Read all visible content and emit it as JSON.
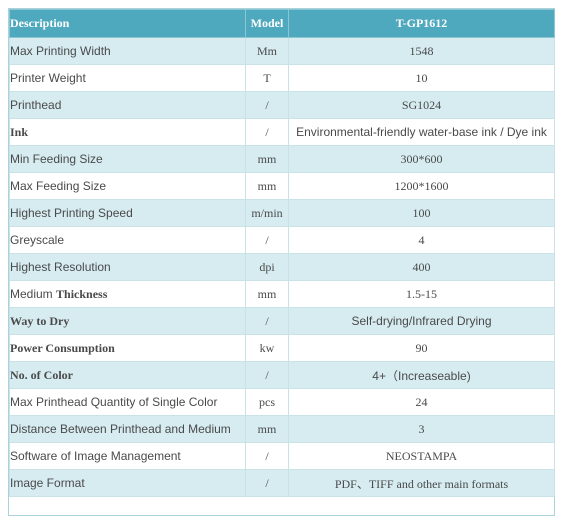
{
  "header": {
    "description": "Description",
    "model": "Model",
    "product": "T-GP1612"
  },
  "rows": [
    {
      "label": "Max Printing Width",
      "unit": "Mm",
      "value": "1548"
    },
    {
      "label": "Printer Weight",
      "unit": "T",
      "value": "10"
    },
    {
      "label": "Printhead",
      "unit": "/",
      "value": "SG1024"
    },
    {
      "label": "Ink",
      "unit": "/",
      "value": "Environmental-friendly water-base ink / Dye ink"
    },
    {
      "label": "Min Feeding Size",
      "unit": "mm",
      "value": "300*600"
    },
    {
      "label": "Max Feeding Size",
      "unit": "mm",
      "value": "1200*1600"
    },
    {
      "label": "Highest Printing Speed",
      "unit": "m/min",
      "value": "100"
    },
    {
      "label": "Greyscale",
      "unit": "/",
      "value": "4"
    },
    {
      "label": "Highest Resolution",
      "unit": "dpi",
      "value": "400"
    },
    {
      "label_pre": "Medium ",
      "label_bold": "Thickness",
      "unit": "mm",
      "value": "1.5-15"
    },
    {
      "label": "Way to Dry",
      "unit": "/",
      "value": "Self-drying/Infrared Drying"
    },
    {
      "label": "Power Consumption",
      "unit": "kw",
      "value": "90"
    },
    {
      "label": "No. of Color",
      "unit": "/",
      "value": "4+（Increaseable)"
    },
    {
      "label": "Max Printhead Quantity of Single Color",
      "unit": "pcs",
      "value": "24"
    },
    {
      "label": "Distance Between Printhead and Medium",
      "unit": "mm",
      "value": "3"
    },
    {
      "label": "Software of Image Management",
      "unit": "/",
      "value": "NEOSTAMPA"
    },
    {
      "label": "Image Format",
      "unit": "/",
      "value": "PDF、TIFF and other main formats"
    }
  ]
}
